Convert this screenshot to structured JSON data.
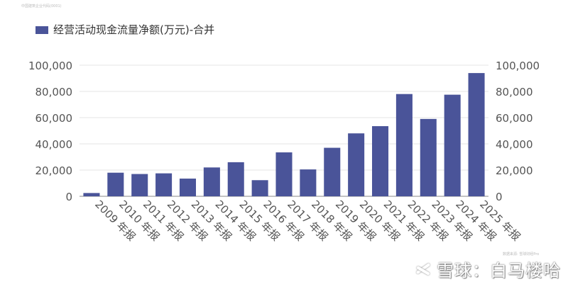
{
  "header_note": "中国建筑企业代码(0001)",
  "footer_note": "数据来源: 雪球财经Pro",
  "watermark": {
    "text": "雪球：白马楼哈",
    "icon": "snowball-logo-icon"
  },
  "colors": {
    "bar": "#4a5499",
    "grid": "#e6e6e6",
    "axis_text": "#555555",
    "legend_text": "#333333"
  },
  "chart_data": {
    "type": "bar",
    "categories": [
      "2009 年报",
      "2010 年报",
      "2011 年报",
      "2012 年报",
      "2013 年报",
      "2014 年报",
      "2015 年报",
      "2016 年报",
      "2017 年报",
      "2018 年报",
      "2019 年报",
      "2020 年报",
      "2021 年报",
      "2022 年报",
      "2023 年报",
      "2024 年报",
      "2025 年报"
    ],
    "series": [
      {
        "name": "经营活动现金流量净额(万元)-合并",
        "values": [
          2500,
          18000,
          17000,
          17500,
          13500,
          22000,
          26000,
          12300,
          33500,
          20500,
          37000,
          48000,
          53500,
          78000,
          59000,
          77500,
          94000
        ]
      }
    ],
    "ylim": [
      0,
      100000
    ],
    "yticks": [
      "0",
      "20,000",
      "40,000",
      "60,000",
      "80,000",
      "100,000"
    ],
    "ytick_values": [
      0,
      20000,
      40000,
      60000,
      80000,
      100000
    ],
    "grid": true,
    "legend_position": "top-left",
    "dual_y_axis": true
  }
}
